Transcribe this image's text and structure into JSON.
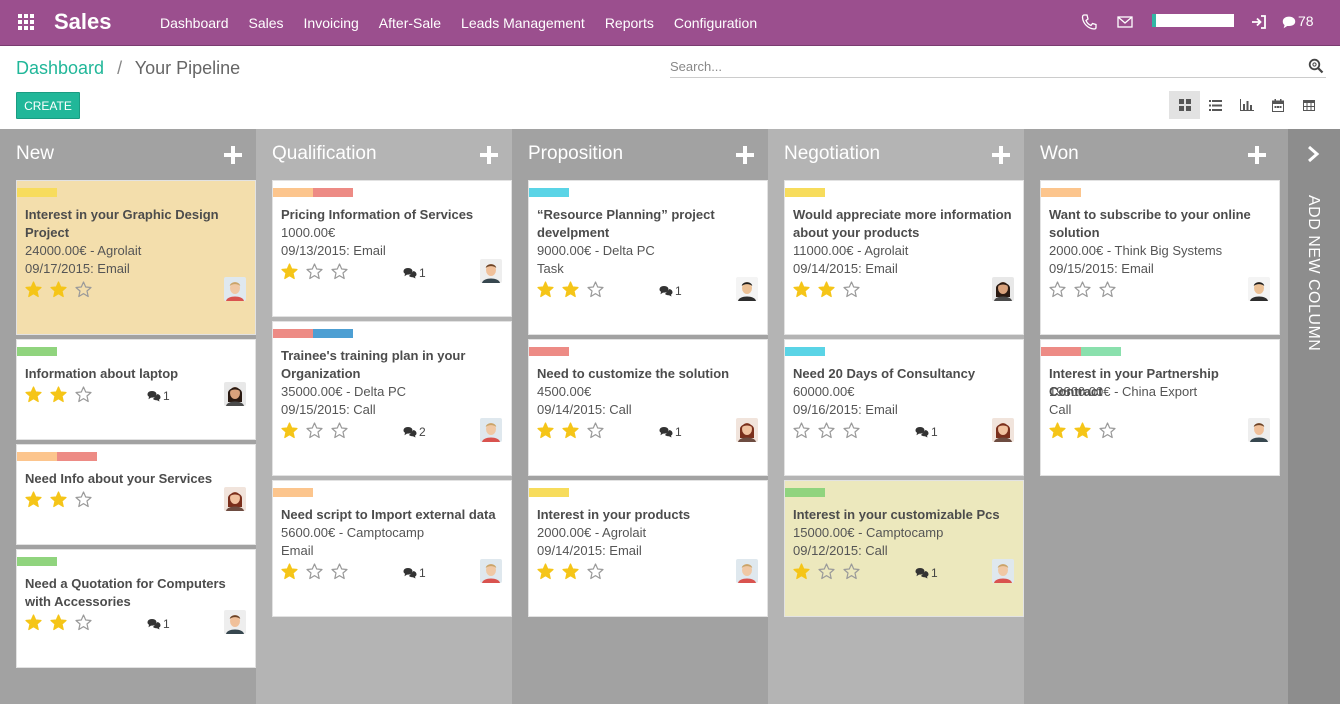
{
  "app": {
    "title": "Sales",
    "menu": [
      "Dashboard",
      "Sales",
      "Invoicing",
      "After-Sale",
      "Leads Management",
      "Reports",
      "Configuration"
    ],
    "message_count": "78"
  },
  "breadcrumb": {
    "root": "Dashboard",
    "separator": "/",
    "current": "Your Pipeline"
  },
  "search": {
    "placeholder": "Search...",
    "value": ""
  },
  "create_label": "CREATE",
  "view_switcher": [
    "kanban-icon",
    "list-icon",
    "graph-icon",
    "calendar-icon",
    "pivot-icon"
  ],
  "active_view": "kanban",
  "add_column_label": "ADD NEW COLUMN",
  "columns": [
    {
      "name": "New",
      "cards": [
        {
          "title": "Interest in your Graphic Design Project",
          "lines": [
            "24000.00€ - Agrolait",
            "09/17/2015: Email"
          ],
          "stars": 2,
          "comments": "",
          "tags": [
            "#f7dc5c"
          ],
          "highlight": "#f3deac",
          "avatar": "man-blond"
        },
        {
          "title": "Information about laptop",
          "lines": [],
          "stars": 2,
          "comments": "1",
          "tags": [
            "#90d47e"
          ],
          "highlight": "",
          "avatar": "woman-dark"
        },
        {
          "title": "Need Info about your Services",
          "lines": [],
          "stars": 2,
          "comments": "",
          "tags": [
            "#fcc58d",
            "#ed8b85"
          ],
          "highlight": "",
          "avatar": "woman-red"
        },
        {
          "title": "Need a Quotation for Computers with Accessories",
          "lines": [],
          "stars": 2,
          "comments": "1",
          "tags": [
            "#90d47e"
          ],
          "highlight": "",
          "avatar": "man-brown"
        }
      ]
    },
    {
      "name": "Qualification",
      "cards": [
        {
          "title": "Pricing Information of Services",
          "lines": [
            "1000.00€",
            "09/13/2015: Email"
          ],
          "stars": 1,
          "comments": "1",
          "tags": [
            "#fcc58d",
            "#ed8b85"
          ],
          "highlight": "",
          "avatar": "man-brown"
        },
        {
          "title": "Trainee's training plan in your Organization",
          "lines": [
            "35000.00€ - Delta PC",
            "09/15/2015: Call"
          ],
          "stars": 1,
          "comments": "2",
          "tags": [
            "#ed8b85",
            "#4d9fd3"
          ],
          "highlight": "",
          "avatar": "man-blond"
        },
        {
          "title": "Need script to Import external data",
          "lines": [
            "5600.00€ - Camptocamp",
            "Email"
          ],
          "stars": 1,
          "comments": "1",
          "tags": [
            "#fcc58d"
          ],
          "highlight": "",
          "avatar": "man-blond"
        }
      ]
    },
    {
      "name": "Proposition",
      "cards": [
        {
          "title": "“Resource Planning” project develpment",
          "lines": [
            "9000.00€ - Delta PC",
            "Task"
          ],
          "stars": 2,
          "comments": "1",
          "tags": [
            "#5ad4e6"
          ],
          "highlight": "",
          "avatar": "man-asian"
        },
        {
          "title": "Need to customize the solution",
          "lines": [
            "4500.00€",
            "09/14/2015: Call"
          ],
          "stars": 2,
          "comments": "1",
          "tags": [
            "#ed8b85"
          ],
          "highlight": "",
          "avatar": "woman-red"
        },
        {
          "title": "Interest in your products",
          "lines": [
            "2000.00€ - Agrolait",
            "09/14/2015: Email"
          ],
          "stars": 2,
          "comments": "",
          "tags": [
            "#f7dc5c"
          ],
          "highlight": "",
          "avatar": "man-blond"
        }
      ]
    },
    {
      "name": "Negotiation",
      "cards": [
        {
          "title": "Would appreciate more information about your products",
          "lines": [
            "11000.00€ - Agrolait",
            "09/14/2015: Email"
          ],
          "stars": 2,
          "comments": "",
          "tags": [
            "#f7dc5c"
          ],
          "highlight": "",
          "avatar": "woman-dark"
        },
        {
          "title": "Need 20 Days of Consultancy",
          "lines": [
            "60000.00€",
            "09/16/2015: Email"
          ],
          "stars": 0,
          "comments": "1",
          "tags": [
            "#5ad4e6"
          ],
          "highlight": "",
          "avatar": "woman-red"
        },
        {
          "title": "Interest in your customizable Pcs",
          "lines": [
            "15000.00€ - Camptocamp",
            "09/12/2015: Call"
          ],
          "stars": 1,
          "comments": "1",
          "tags": [
            "#90d47e"
          ],
          "highlight": "#ece8bd",
          "avatar": "man-blond"
        }
      ]
    },
    {
      "name": "Won",
      "cards": [
        {
          "title": "Want to subscribe to your online solution",
          "lines": [
            "2000.00€ - Think Big Systems",
            "09/15/2015: Email"
          ],
          "stars": 0,
          "comments": "",
          "tags": [
            "#fcc58d"
          ],
          "highlight": "",
          "avatar": "man-asian"
        },
        {
          "title": "Interest in your Partnership Contract",
          "lines": [
            "19800.00€ - China Export",
            "Call"
          ],
          "stars": 2,
          "comments": "",
          "tags": [
            "#ed8b85",
            "#8ae0ad"
          ],
          "highlight": "",
          "avatar": "man-brown"
        }
      ]
    }
  ]
}
